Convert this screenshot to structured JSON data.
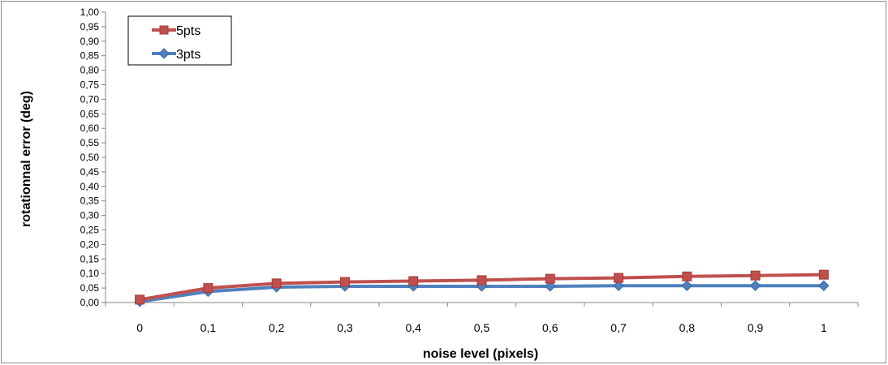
{
  "chart_data": {
    "type": "line",
    "title": "",
    "xlabel": "noise level (pixels)",
    "ylabel": "rotationnal error (deg)",
    "x": [
      0,
      0.1,
      0.2,
      0.3,
      0.4,
      0.5,
      0.6,
      0.7,
      0.8,
      0.9,
      1
    ],
    "x_tick_labels": [
      "0",
      "0,1",
      "0,2",
      "0,3",
      "0,4",
      "0,5",
      "0,6",
      "0,7",
      "0,8",
      "0,9",
      "1"
    ],
    "ylim": [
      0,
      1
    ],
    "y_ticks": [
      0,
      0.05,
      0.1,
      0.15,
      0.2,
      0.25,
      0.3,
      0.35,
      0.4,
      0.45,
      0.5,
      0.55,
      0.6,
      0.65,
      0.7,
      0.75,
      0.8,
      0.85,
      0.9,
      0.95,
      1
    ],
    "y_tick_labels": [
      "0,00",
      "0,05",
      "0,10",
      "0,15",
      "0,20",
      "0,25",
      "0,30",
      "0,35",
      "0,40",
      "0,45",
      "0,50",
      "0,55",
      "0,60",
      "0,65",
      "0,70",
      "0,75",
      "0,80",
      "0,85",
      "0,90",
      "0,95",
      "1,00"
    ],
    "grid": false,
    "legend_position": "top-left",
    "series": [
      {
        "name": "5pts",
        "color": "#c0504d",
        "marker": "square",
        "values": [
          0.01,
          0.05,
          0.066,
          0.071,
          0.074,
          0.077,
          0.082,
          0.085,
          0.09,
          0.093,
          0.096
        ]
      },
      {
        "name": "3pts",
        "color": "#4f81bd",
        "marker": "diamond",
        "values": [
          0.003,
          0.038,
          0.053,
          0.056,
          0.056,
          0.056,
          0.056,
          0.058,
          0.058,
          0.058,
          0.058
        ]
      }
    ]
  }
}
